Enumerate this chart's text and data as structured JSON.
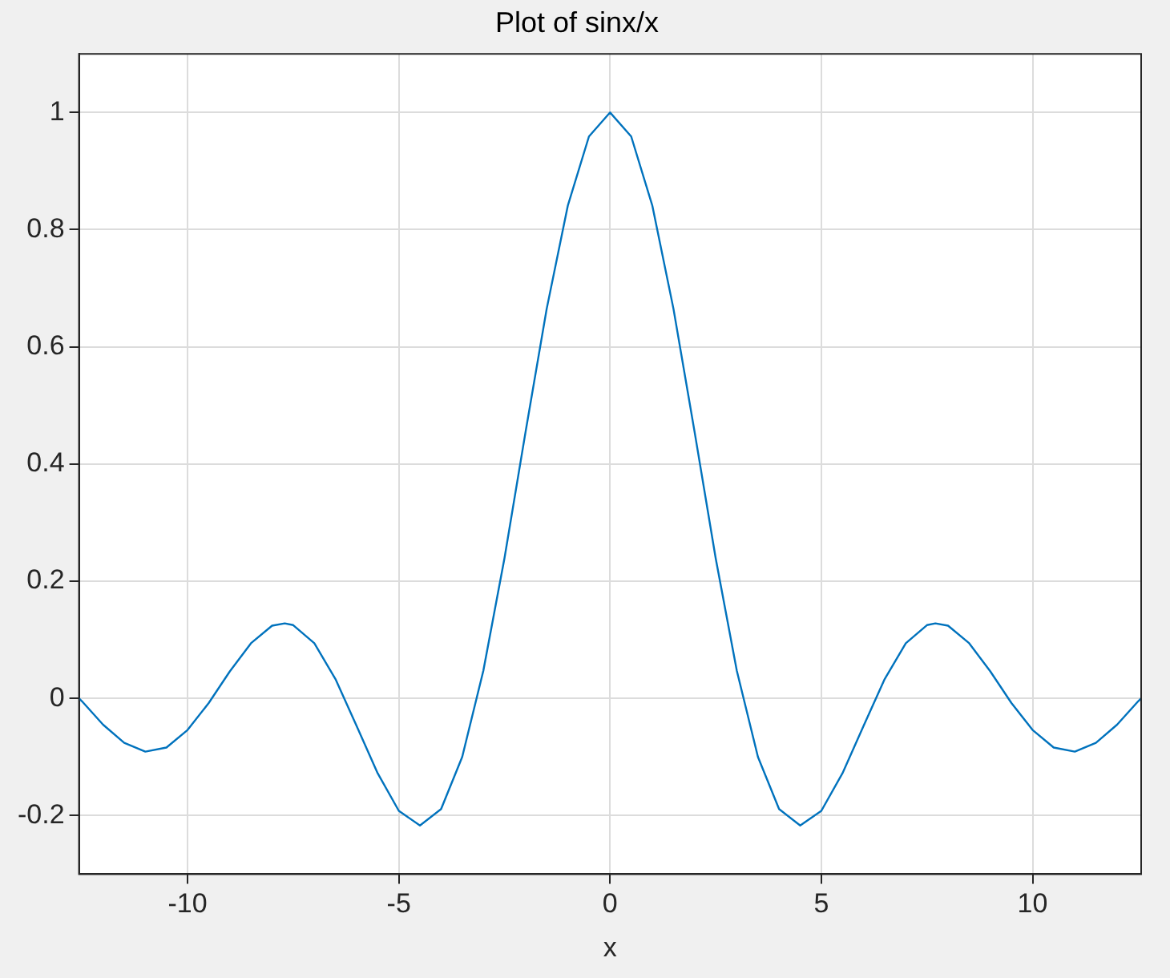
{
  "chart_data": {
    "type": "line",
    "title": "Plot of sinx/x",
    "xlabel": "x",
    "x": [
      -12.57,
      -12.5,
      -12,
      -11.5,
      -11,
      -10.5,
      -10,
      -9.5,
      -9,
      -8.5,
      -8,
      -7.7,
      -7.5,
      -7,
      -6.5,
      -6,
      -5.5,
      -5,
      -4.5,
      -4,
      -3.5,
      -3,
      -2.5,
      -2,
      -1.5,
      -1,
      -0.5,
      0,
      0.5,
      1,
      1.5,
      2,
      2.5,
      3,
      3.5,
      4,
      4.5,
      5,
      5.5,
      6,
      6.5,
      7,
      7.5,
      7.7,
      8,
      8.5,
      9,
      9.5,
      10,
      10.5,
      11,
      11.5,
      12,
      12.5,
      12.57
    ],
    "series": [
      {
        "color": "#0072bd",
        "values": [
          0,
          -0.005,
          -0.045,
          -0.076,
          -0.091,
          -0.084,
          -0.054,
          -0.008,
          0.046,
          0.094,
          0.124,
          0.128,
          0.125,
          0.094,
          0.033,
          -0.047,
          -0.128,
          -0.192,
          -0.217,
          -0.189,
          -0.1,
          0.047,
          0.239,
          0.455,
          0.665,
          0.841,
          0.959,
          1,
          0.959,
          0.841,
          0.665,
          0.455,
          0.239,
          0.047,
          -0.1,
          -0.189,
          -0.217,
          -0.192,
          -0.128,
          -0.047,
          0.033,
          0.094,
          0.125,
          0.128,
          0.124,
          0.094,
          0.046,
          -0.008,
          -0.054,
          -0.084,
          -0.091,
          -0.076,
          -0.045,
          -0.005,
          0
        ]
      }
    ],
    "xlim": [
      -12.57,
      12.57
    ],
    "ylim": [
      -0.3,
      1.1
    ],
    "xticks": [
      -10,
      -5,
      0,
      5,
      10
    ],
    "yticks": [
      -0.2,
      0,
      0.2,
      0.4,
      0.6,
      0.8,
      1
    ],
    "grid": true,
    "legend": false,
    "marker": "none",
    "line_style": "solid"
  }
}
